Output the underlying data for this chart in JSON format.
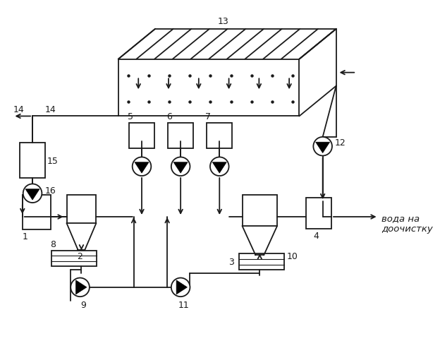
{
  "bg_color": "#ffffff",
  "line_color": "#1a1a1a",
  "text_voda": "вода на\nдоочистку"
}
